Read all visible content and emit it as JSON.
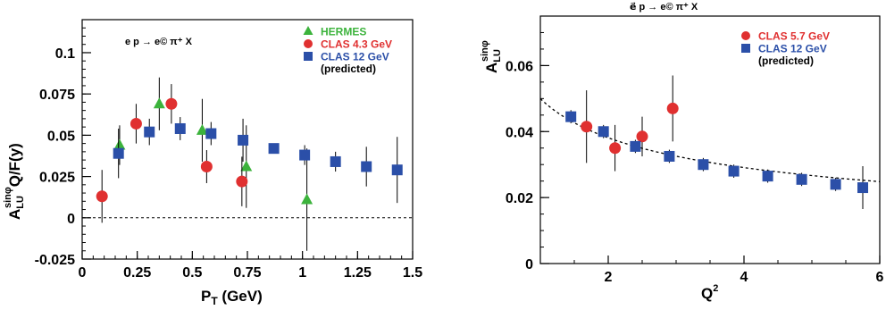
{
  "chart_data": [
    {
      "type": "scatter",
      "title": "",
      "annotation": "e p → e© π⁺ X",
      "xlabel": "P_T (GeV)",
      "ylabel": "A_LU^{sinφ} Q/F(y)",
      "xlim": [
        0,
        1.5
      ],
      "ylim": [
        -0.025,
        0.12
      ],
      "x_ticks": [
        "0",
        "0.25",
        "0.5",
        "0.75",
        "1",
        "1.25",
        "1.5"
      ],
      "y_ticks": [
        "-0.025",
        "0",
        "0.025",
        "0.05",
        "0.075",
        "0.1"
      ],
      "reference_line": 0,
      "legend_position": "top-right",
      "series": [
        {
          "name": "HERMES",
          "color": "#3cb33c",
          "marker": "triangle",
          "points": [
            {
              "x": 0.17,
              "y": 0.044,
              "err": 0.012
            },
            {
              "x": 0.35,
              "y": 0.069,
              "err": 0.016
            },
            {
              "x": 0.545,
              "y": 0.053,
              "err": 0.019
            },
            {
              "x": 0.745,
              "y": 0.031,
              "err": 0.025
            },
            {
              "x": 1.02,
              "y": 0.011,
              "err": 0.031
            }
          ]
        },
        {
          "name": "CLAS 4.3 GeV",
          "color": "#e03030",
          "marker": "circle",
          "points": [
            {
              "x": 0.09,
              "y": 0.013,
              "err": 0.016
            },
            {
              "x": 0.245,
              "y": 0.057,
              "err": 0.012
            },
            {
              "x": 0.405,
              "y": 0.069,
              "err": 0.012
            },
            {
              "x": 0.565,
              "y": 0.031,
              "err": 0.01
            },
            {
              "x": 0.725,
              "y": 0.022,
              "err": 0.015
            }
          ]
        },
        {
          "name": "CLAS 12 GeV",
          "note": "(predicted)",
          "color": "#2b4fa8",
          "marker": "square",
          "points": [
            {
              "x": 0.165,
              "y": 0.039,
              "err": 0.015
            },
            {
              "x": 0.305,
              "y": 0.052,
              "err": 0.008
            },
            {
              "x": 0.445,
              "y": 0.054,
              "err": 0.007
            },
            {
              "x": 0.585,
              "y": 0.051,
              "err": 0.007
            },
            {
              "x": 0.73,
              "y": 0.047,
              "err": 0.013
            },
            {
              "x": 0.87,
              "y": 0.042,
              "err": 0.003
            },
            {
              "x": 1.01,
              "y": 0.038,
              "err": 0.006
            },
            {
              "x": 1.15,
              "y": 0.034,
              "err": 0.006
            },
            {
              "x": 1.29,
              "y": 0.031,
              "err": 0.012
            },
            {
              "x": 1.43,
              "y": 0.029,
              "err": 0.02
            }
          ]
        }
      ]
    },
    {
      "type": "scatter",
      "title": "e⃗ p → e© π⁺ X",
      "xlabel": "Q²",
      "ylabel": "A_LU^{sinφ}",
      "xlim": [
        1,
        6
      ],
      "ylim": [
        0,
        0.075
      ],
      "x_ticks": [
        "2",
        "4",
        "6"
      ],
      "y_ticks": [
        "0",
        "0.02",
        "0.04",
        "0.06"
      ],
      "legend_position": "top-right",
      "fit_curve": "dotted fit",
      "series": [
        {
          "name": "CLAS 5.7 GeV",
          "color": "#e03030",
          "marker": "circle",
          "points": [
            {
              "x": 1.68,
              "y": 0.0415,
              "err": 0.011
            },
            {
              "x": 2.1,
              "y": 0.035,
              "err": 0.007
            },
            {
              "x": 2.5,
              "y": 0.0385,
              "err": 0.006
            },
            {
              "x": 2.95,
              "y": 0.047,
              "err": 0.01
            }
          ]
        },
        {
          "name": "CLAS 12 GeV",
          "note": "(predicted)",
          "color": "#2b4fa8",
          "marker": "square",
          "points": [
            {
              "x": 1.45,
              "y": 0.0445,
              "err": 0.002
            },
            {
              "x": 1.93,
              "y": 0.04,
              "err": 0.002
            },
            {
              "x": 2.4,
              "y": 0.0355,
              "err": 0.002
            },
            {
              "x": 2.9,
              "y": 0.0325,
              "err": 0.002
            },
            {
              "x": 3.4,
              "y": 0.03,
              "err": 0.002
            },
            {
              "x": 3.85,
              "y": 0.028,
              "err": 0.002
            },
            {
              "x": 4.35,
              "y": 0.0265,
              "err": 0.002
            },
            {
              "x": 4.85,
              "y": 0.0255,
              "err": 0.002
            },
            {
              "x": 5.35,
              "y": 0.024,
              "err": 0.002
            },
            {
              "x": 5.75,
              "y": 0.023,
              "err": 0.0065
            }
          ]
        }
      ]
    }
  ]
}
